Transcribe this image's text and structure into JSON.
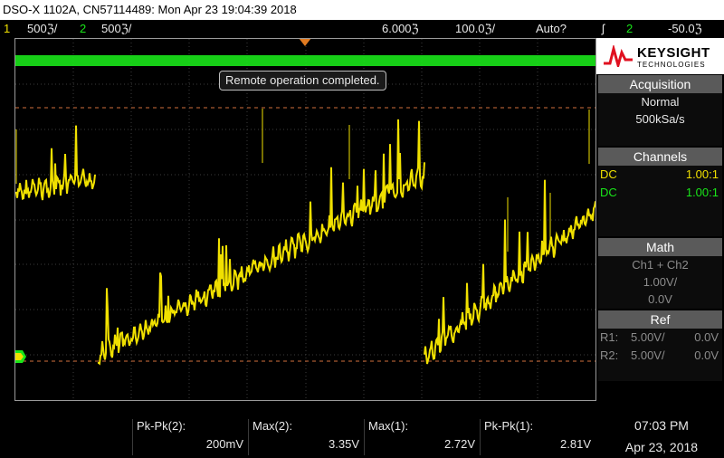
{
  "title": "DSO-X 1102A, CN57114489: Mon Apr 23 19:04:39 2018",
  "status": {
    "ch1_num": "1",
    "ch1_scale": "500ℨ/",
    "ch2_num": "2",
    "ch2_scale": "500ℨ/",
    "time_pos": "6.000ℨ",
    "time_div": "100.0ℨ/",
    "trigger_mode": "Auto?",
    "trigger_icon": "ʃ",
    "trigger_ch": "2",
    "trigger_level": "-50.0ℨ"
  },
  "toast": "Remote operation completed.",
  "brand": {
    "name": "KEYSIGHT",
    "sub": "TECHNOLOGIES",
    "icon": "keysight-wave-icon"
  },
  "acquisition": {
    "header": "Acquisition",
    "mode": "Normal",
    "rate": "500kSa/s"
  },
  "channels": {
    "header": "Channels",
    "rows": [
      {
        "coupling": "DC",
        "probe": "1.00:1"
      },
      {
        "coupling": "DC",
        "probe": "1.00:1"
      }
    ]
  },
  "math": {
    "header": "Math",
    "expr": "Ch1 + Ch2",
    "scale": "1.00V/",
    "offset": "0.0V"
  },
  "ref": {
    "header": "Ref",
    "rows": [
      {
        "name": "R1:",
        "scale": "5.00V/",
        "offset": "0.0V"
      },
      {
        "name": "R2:",
        "scale": "5.00V/",
        "offset": "0.0V"
      }
    ]
  },
  "measurements": [
    {
      "label": "Pk-Pk(2):",
      "value": "200mV"
    },
    {
      "label": "Max(2):",
      "value": "3.35V"
    },
    {
      "label": "Max(1):",
      "value": "2.72V"
    },
    {
      "label": "Pk-Pk(1):",
      "value": "2.81V"
    }
  ],
  "clock": {
    "time": "07:03 PM",
    "date": "Apr 23, 2018"
  },
  "colors": {
    "ch1": "#f0e000",
    "ch2": "#19e619",
    "cursor": "#d2703c",
    "panel_header": "#5a5a5a"
  }
}
